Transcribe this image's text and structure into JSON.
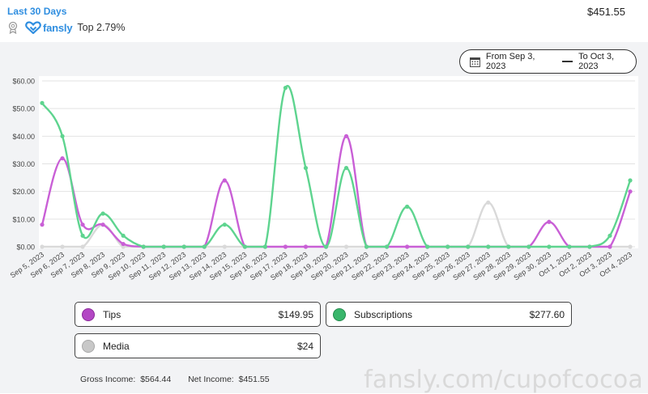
{
  "header": {
    "period": "Last 30 Days",
    "total": "$451.55",
    "brand": "fansly",
    "rank": "Top 2.79%"
  },
  "date_range": {
    "from": "From Sep 3, 2023",
    "to": "To Oct 3, 2023"
  },
  "colors": {
    "tips": "#c95fd6",
    "subscriptions": "#5ed48f",
    "media": "#d9d9d9",
    "accent": "#2f8ee0"
  },
  "chart_data": {
    "type": "line",
    "x": [
      "Sep 5, 2023",
      "Sep 6, 2023",
      "Sep 7, 2023",
      "Sep 8, 2023",
      "Sep 9, 2023",
      "Sep 10, 2023",
      "Sep 11, 2023",
      "Sep 12, 2023",
      "Sep 13, 2023",
      "Sep 14, 2023",
      "Sep 15, 2023",
      "Sep 16, 2023",
      "Sep 17, 2023",
      "Sep 18, 2023",
      "Sep 19, 2023",
      "Sep 20, 2023",
      "Sep 21, 2023",
      "Sep 22, 2023",
      "Sep 23, 2023",
      "Sep 24, 2023",
      "Sep 25, 2023",
      "Sep 26, 2023",
      "Sep 27, 2023",
      "Sep 28, 2023",
      "Sep 29, 2023",
      "Sep 30, 2023",
      "Oct 1, 2023",
      "Oct 2, 2023",
      "Oct 3, 2023",
      "Oct 4, 2023"
    ],
    "yticks": [
      "$0.00",
      "$10.00",
      "$20.00",
      "$30.00",
      "$40.00",
      "$50.00",
      "$60.00"
    ],
    "ylim": [
      0,
      60
    ],
    "grid": true,
    "series": [
      {
        "name": "Media",
        "color": "#d9d9d9",
        "values": [
          0,
          0,
          0,
          8,
          0,
          0,
          0,
          0,
          0,
          0,
          0,
          0,
          0,
          0,
          0,
          0,
          0,
          0,
          0,
          0,
          0,
          0,
          16,
          0,
          0,
          0,
          0,
          0,
          0,
          0
        ]
      },
      {
        "name": "Tips",
        "color": "#c95fd6",
        "values": [
          8,
          32,
          8,
          8,
          1,
          0,
          0,
          0,
          0,
          24,
          0,
          0,
          0,
          0,
          0,
          40,
          0,
          0,
          0,
          0,
          0,
          0,
          0,
          0,
          0,
          9,
          0,
          0,
          0,
          20
        ]
      },
      {
        "name": "Subscriptions",
        "color": "#5ed48f",
        "values": [
          52,
          40,
          4,
          12,
          4,
          0,
          0,
          0,
          0,
          8,
          0,
          0,
          57.5,
          28.5,
          0,
          28.5,
          0,
          0,
          14.5,
          0,
          0,
          0,
          0,
          0,
          0,
          0,
          0,
          0,
          4,
          24
        ]
      }
    ]
  },
  "legend": {
    "tips": {
      "label": "Tips",
      "value": "$149.95"
    },
    "subscriptions": {
      "label": "Subscriptions",
      "value": "$277.60"
    },
    "media": {
      "label": "Media",
      "value": "$24"
    }
  },
  "income": {
    "gross_label": "Gross Income:",
    "gross_value": "$564.44",
    "net_label": "Net Income:",
    "net_value": "$451.55"
  },
  "watermark": "fansly.com/cupofcocoa"
}
